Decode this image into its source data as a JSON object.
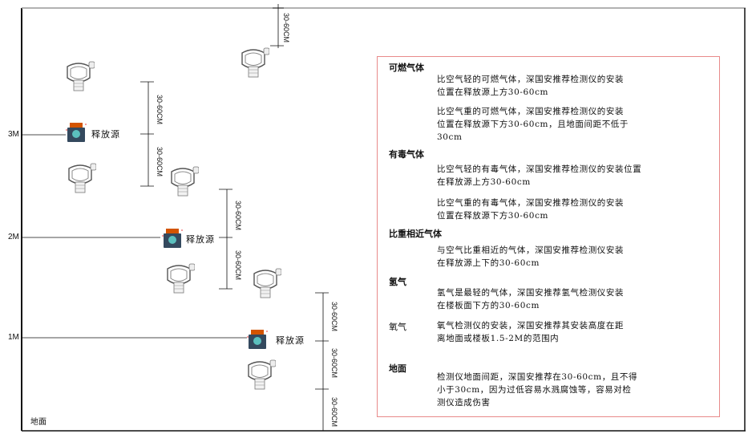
{
  "levels": {
    "m3": "3M",
    "m2": "2M",
    "m1": "1M",
    "ground": "地面"
  },
  "dimension_label": "30-60CM",
  "source_label": "释放源",
  "colors": {
    "frame": "#111111",
    "box_border": "#e88a8a",
    "source_body": "#34495e",
    "source_cap": "#d35400"
  },
  "sections": [
    {
      "title": "可燃气体",
      "paragraphs": [
        "比空气轻的可燃气体，深国安推荐检测仪的安装\n位置在释放源上方30-60cm",
        "比空气重的可燃气体，深国安推荐检测仪的安装\n位置在释放源下方30-60cm，且地面间距不低于\n30cm"
      ]
    },
    {
      "title": "有毒气体",
      "paragraphs": [
        "比空气轻的有毒气体，深国安推荐检测仪的安装位置\n在释放源上方30-60cm",
        "比空气重的有毒气体，深国安推荐检测仪的安装\n位置在释放源下方30-60cm"
      ]
    },
    {
      "title": "比重相近气体",
      "paragraphs": [
        "与空气比重相近的气体，深国安推荐检测仪安装\n在释放源上下的30-60cm"
      ]
    },
    {
      "title": "氢气",
      "paragraphs": [
        "氢气是最轻的气体，深国安推荐氢气检测仪安装\n在楼板面下方的30-60cm"
      ]
    },
    {
      "title": "氧气",
      "paragraphs": [
        "氧气检测仪的安装，深国安推荐其安装高度在距\n离地面或楼板1.5-2M的范围内"
      ]
    },
    {
      "title": "地面",
      "paragraphs": [
        "检测仪地面间距，深国安推荐在30-60cm，且不得\n小于30cm，因为过低容易水溅腐蚀等，容易对检\n测仪造成伤害"
      ]
    }
  ]
}
